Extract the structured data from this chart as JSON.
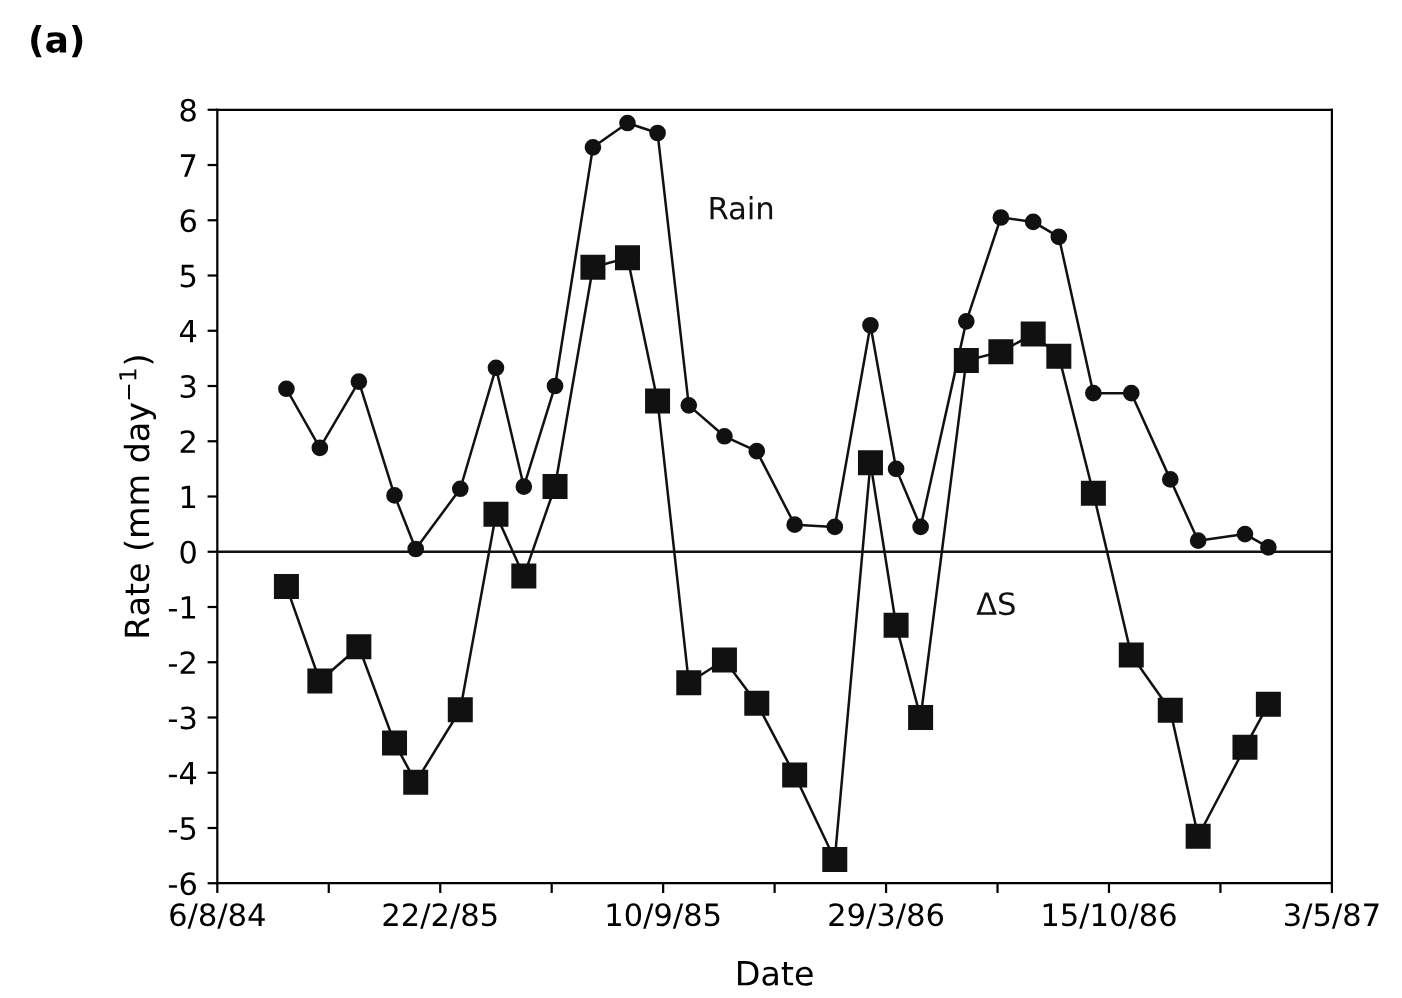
{
  "chart_data": {
    "type": "line",
    "title": "(a)",
    "xlabel": "Date",
    "ylabel": "Rate (mm day$^{−1}$)",
    "x": [
      "1984-10-07",
      "1984-11-06",
      "1984-12-11",
      "1985-01-12",
      "1985-01-31",
      "1985-03-12",
      "1985-04-13",
      "1985-05-08",
      "1985-06-05",
      "1985-07-09",
      "1985-08-09",
      "1985-09-05",
      "1985-10-03",
      "1985-11-04",
      "1985-12-03",
      "1986-01-06",
      "1986-02-11",
      "1986-03-15",
      "1986-04-07",
      "1986-04-29",
      "1986-06-09",
      "1986-07-10",
      "1986-08-08",
      "1986-08-31",
      "1986-10-01",
      "1986-11-04",
      "1986-12-09",
      "1987-01-03",
      "1987-02-14",
      "1987-03-07"
    ],
    "series": [
      {
        "name": "Rain",
        "color": "#111111",
        "marker": "circle",
        "values": [
          2.95,
          1.88,
          3.08,
          1.02,
          0.05,
          1.14,
          3.33,
          1.18,
          3.0,
          7.32,
          7.76,
          7.58,
          2.65,
          2.09,
          1.82,
          0.49,
          0.45,
          4.1,
          1.5,
          0.45,
          4.17,
          6.05,
          5.97,
          5.7,
          2.87,
          2.87,
          1.31,
          0.2,
          0.32,
          0.08
        ]
      },
      {
        "name": "ΔS",
        "color": "#111111",
        "marker": "square",
        "values": [
          -0.63,
          -2.34,
          -1.72,
          -3.46,
          -4.17,
          -2.86,
          0.68,
          -0.44,
          1.18,
          5.15,
          5.32,
          2.73,
          -2.37,
          -1.96,
          -2.74,
          -4.04,
          -5.57,
          1.61,
          -1.33,
          -3.0,
          3.46,
          3.62,
          3.94,
          3.54,
          1.06,
          -1.87,
          -2.87,
          -5.15,
          -3.54,
          -2.76
        ]
      }
    ],
    "ref_lines": [
      {
        "axis": "y",
        "value": 0,
        "color": "#111111"
      }
    ],
    "xlim": [
      "1984-08-06",
      "1987-05-03"
    ],
    "xticks": [
      {
        "value": "1984-08-06",
        "label": "6/8/84"
      },
      {
        "value": "1984-11-14",
        "label": null
      },
      {
        "value": "1985-02-22",
        "label": "22/2/85"
      },
      {
        "value": "1985-06-02",
        "label": null
      },
      {
        "value": "1985-09-10",
        "label": "10/9/85"
      },
      {
        "value": "1985-12-19",
        "label": null
      },
      {
        "value": "1986-03-29",
        "label": "29/3/86"
      },
      {
        "value": "1986-07-07",
        "label": null
      },
      {
        "value": "1986-10-15",
        "label": "15/10/86"
      },
      {
        "value": "1987-01-23",
        "label": null
      },
      {
        "value": "1987-05-03",
        "label": "3/5/87"
      }
    ],
    "ylim": [
      -6,
      8
    ],
    "yticks": [
      -6,
      -5,
      -4,
      -3,
      -2,
      -1,
      0,
      1,
      2,
      3,
      4,
      5,
      6,
      7,
      8
    ],
    "grid": false,
    "line_style": "solid"
  }
}
